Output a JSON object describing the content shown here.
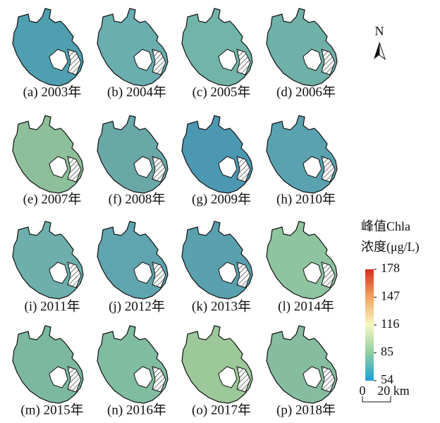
{
  "panels": [
    {
      "label": "(a) 2003年"
    },
    {
      "label": "(b) 2004年"
    },
    {
      "label": "(c) 2005年"
    },
    {
      "label": "(d) 2006年"
    },
    {
      "label": "(e) 2007年"
    },
    {
      "label": "(f) 2008年"
    },
    {
      "label": "(g) 2009年"
    },
    {
      "label": "(h) 2010年"
    },
    {
      "label": "(i) 2011年"
    },
    {
      "label": "(j) 2012年"
    },
    {
      "label": "(k) 2013年"
    },
    {
      "label": "(l) 2014年"
    },
    {
      "label": "(m) 2015年"
    },
    {
      "label": "(n) 2016年"
    },
    {
      "label": "(o) 2017年"
    },
    {
      "label": "(p) 2018年"
    }
  ],
  "north": "N",
  "legend": {
    "title_lines": [
      "峰值Chla",
      "浓度(μg/L)"
    ],
    "ticks": [
      178,
      147,
      116,
      85,
      54
    ]
  },
  "scale": {
    "labels": [
      "0",
      "20 km"
    ]
  }
}
